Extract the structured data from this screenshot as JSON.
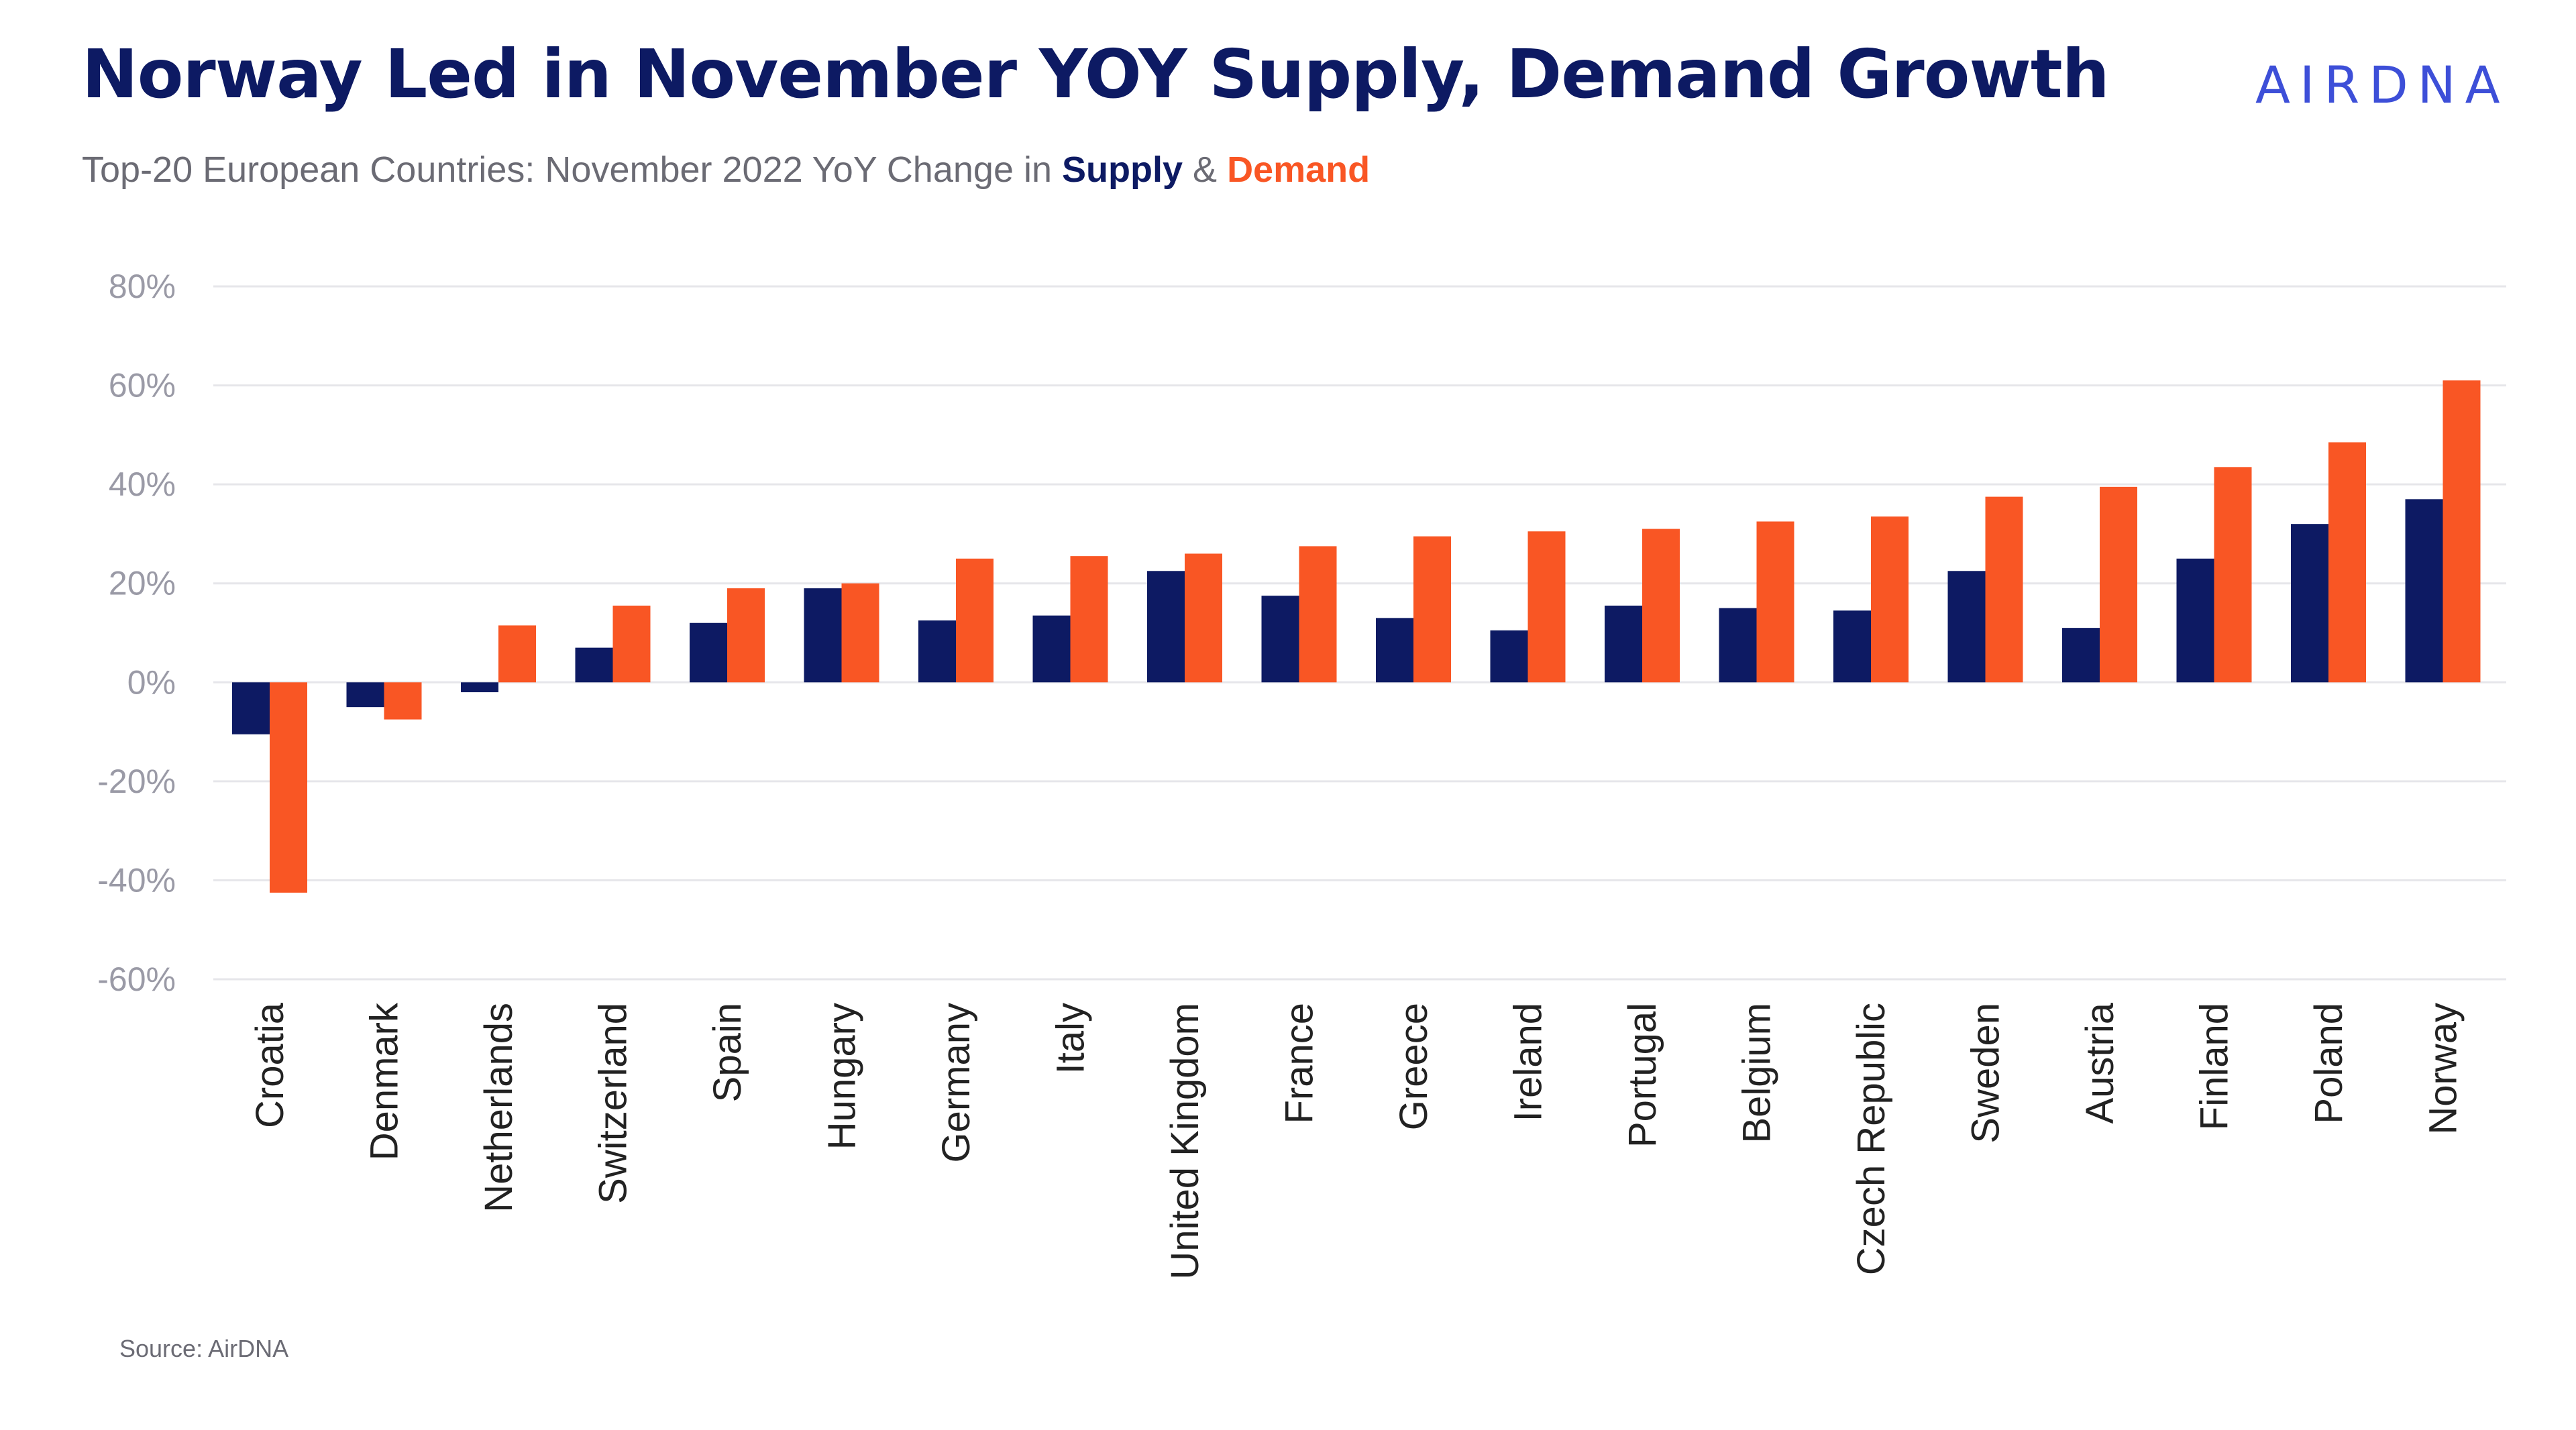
{
  "header": {
    "title": "Norway Led in November YOY Supply, Demand Growth",
    "logo_text": "AIRDNA",
    "subtitle_prefix": "Top-20 European Countries: November 2022 YoY Change in ",
    "subtitle_supply": "Supply",
    "subtitle_amp": " & ",
    "subtitle_demand": "Demand"
  },
  "footer": {
    "source": "Source: AirDNA"
  },
  "colors": {
    "supply": "#0d1a63",
    "demand": "#f95624",
    "grid": "#e6e6ea"
  },
  "chart_data": {
    "type": "bar",
    "categories": [
      "Croatia",
      "Denmark",
      "Netherlands",
      "Switzerland",
      "Spain",
      "Hungary",
      "Germany",
      "Italy",
      "United Kingdom",
      "France",
      "Greece",
      "Ireland",
      "Portugal",
      "Belgium",
      "Czech Republic",
      "Sweden",
      "Austria",
      "Finland",
      "Poland",
      "Norway"
    ],
    "series": [
      {
        "name": "Supply",
        "values": [
          -10.5,
          -5,
          -2,
          7,
          12,
          19,
          12.5,
          13.5,
          22.5,
          17.5,
          13,
          10.5,
          15.5,
          15,
          14.5,
          22.5,
          11,
          25,
          32,
          37
        ]
      },
      {
        "name": "Demand",
        "values": [
          -42.5,
          -7.5,
          11.5,
          15.5,
          19,
          20,
          25,
          25.5,
          26,
          27.5,
          29.5,
          30.5,
          31,
          32.5,
          33.5,
          37.5,
          39.5,
          43.5,
          48.5,
          61
        ]
      }
    ],
    "ylim": [
      -60,
      80
    ],
    "yticks": [
      80,
      60,
      40,
      20,
      0,
      -20,
      -40,
      -60
    ],
    "ytick_labels": [
      "80%",
      "60%",
      "40%",
      "20%",
      "0%",
      "-20%",
      "-40%",
      "-60%"
    ],
    "grid": true,
    "xlabel": "",
    "ylabel": ""
  }
}
